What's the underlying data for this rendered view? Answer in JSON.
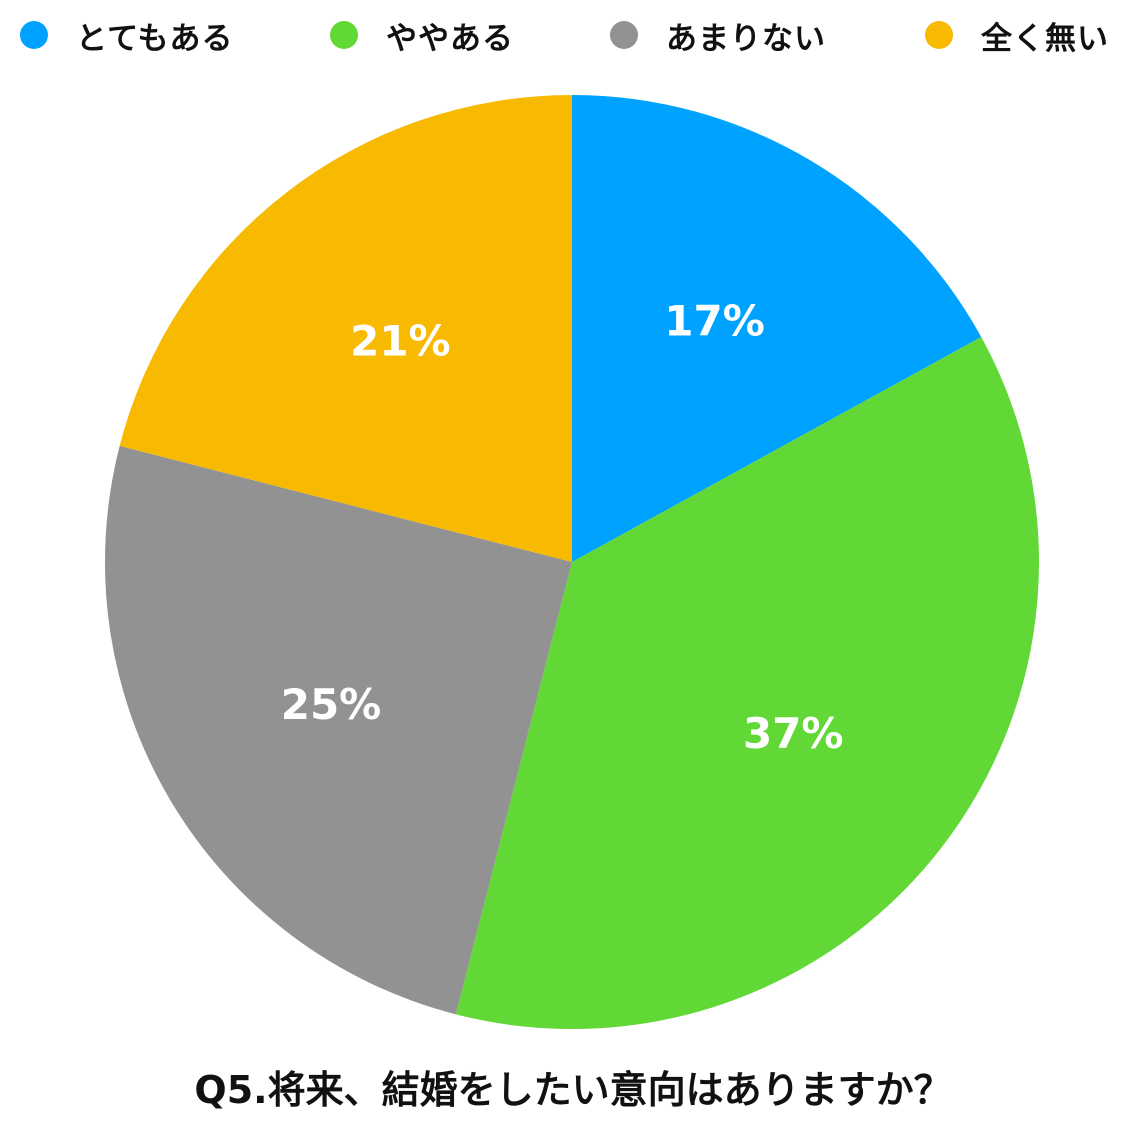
{
  "chart_data": {
    "type": "pie",
    "title": "Q5.将来、結婚をしたい意向はありますか？",
    "legend_position": "top",
    "start_angle": "12 o'clock, clockwise",
    "slices": [
      {
        "name": "とてもある",
        "value": 17,
        "label": "17%",
        "color": "#00A2FF"
      },
      {
        "name": "ややある",
        "value": 37,
        "label": "37%",
        "color": "#61D836"
      },
      {
        "name": "あまりない",
        "value": 25,
        "label": "25%",
        "color": "#929292"
      },
      {
        "name": "全く無い",
        "value": 21,
        "label": "21%",
        "color": "#F8BA00"
      }
    ]
  }
}
